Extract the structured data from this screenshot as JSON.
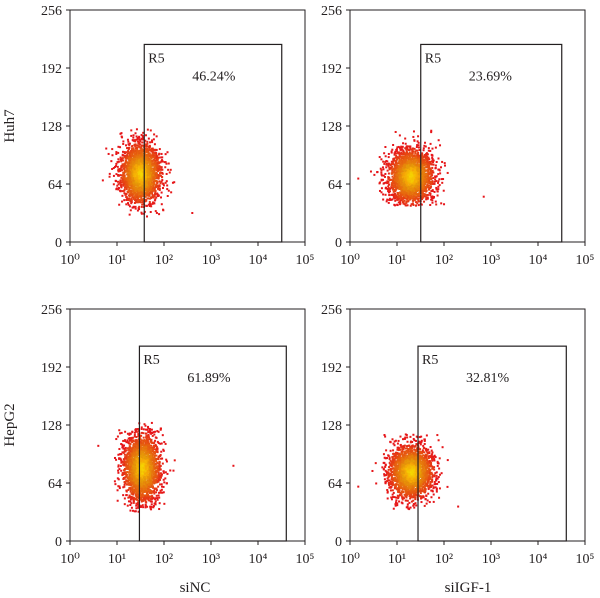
{
  "figure": {
    "row_labels": [
      "Huh7",
      "HepG2"
    ],
    "col_labels": [
      "siNC",
      "siIGF-1"
    ]
  },
  "chart_data": [
    {
      "type": "scatter",
      "row": 0,
      "col": 0,
      "cell_line": "Huh7",
      "condition": "siNC",
      "xscale": "log",
      "xlim": [
        1,
        100000
      ],
      "ylim": [
        0,
        256
      ],
      "xticks": [
        1,
        10,
        100,
        1000,
        10000,
        100000
      ],
      "yticks": [
        0,
        64,
        128,
        192,
        256
      ],
      "gate": {
        "name": "R5",
        "x": [
          38,
          32000
        ],
        "y": [
          0,
          218
        ],
        "percent": "46.24%"
      },
      "cluster": {
        "x_center": 32,
        "x_spread_decades": 0.22,
        "y_center": 75,
        "y_spread": 17,
        "y_min": 28,
        "y_max": 128,
        "points": 2200
      },
      "outliers": [
        [
          5,
          68
        ],
        [
          400,
          32
        ]
      ],
      "grid": false
    },
    {
      "type": "scatter",
      "row": 0,
      "col": 1,
      "cell_line": "Huh7",
      "condition": "siIGF-1",
      "xscale": "log",
      "xlim": [
        1,
        100000
      ],
      "ylim": [
        0,
        256
      ],
      "xticks": [
        1,
        10,
        100,
        1000,
        10000,
        100000
      ],
      "yticks": [
        0,
        64,
        128,
        192,
        256
      ],
      "gate": {
        "name": "R5",
        "x": [
          32,
          32000
        ],
        "y": [
          0,
          218
        ],
        "percent": "23.69%"
      },
      "cluster": {
        "x_center": 20,
        "x_spread_decades": 0.24,
        "y_center": 72,
        "y_spread": 15,
        "y_min": 40,
        "y_max": 128,
        "points": 2200
      },
      "outliers": [
        [
          1.5,
          70
        ],
        [
          700,
          50
        ]
      ],
      "grid": false
    },
    {
      "type": "scatter",
      "row": 1,
      "col": 0,
      "cell_line": "HepG2",
      "condition": "siNC",
      "xscale": "log",
      "xlim": [
        1,
        100000
      ],
      "ylim": [
        0,
        256
      ],
      "xticks": [
        1,
        10,
        100,
        1000,
        10000,
        100000
      ],
      "yticks": [
        0,
        64,
        128,
        192,
        256
      ],
      "gate": {
        "name": "R5",
        "x": [
          30,
          40000
        ],
        "y": [
          0,
          215
        ],
        "percent": "61.89%"
      },
      "cluster": {
        "x_center": 34,
        "x_spread_decades": 0.2,
        "y_center": 80,
        "y_spread": 19,
        "y_min": 32,
        "y_max": 132,
        "points": 2200
      },
      "outliers": [
        [
          3000,
          83
        ],
        [
          4,
          105
        ]
      ],
      "grid": false
    },
    {
      "type": "scatter",
      "row": 1,
      "col": 1,
      "cell_line": "HepG2",
      "condition": "siIGF-1",
      "xscale": "log",
      "xlim": [
        1,
        100000
      ],
      "ylim": [
        0,
        256
      ],
      "xticks": [
        1,
        10,
        100,
        1000,
        10000,
        100000
      ],
      "yticks": [
        0,
        64,
        128,
        192,
        256
      ],
      "gate": {
        "name": "R5",
        "x": [
          28,
          40000
        ],
        "y": [
          0,
          215
        ],
        "percent": "32.81%"
      },
      "cluster": {
        "x_center": 20,
        "x_spread_decades": 0.24,
        "y_center": 76,
        "y_spread": 15,
        "y_min": 35,
        "y_max": 118,
        "points": 2200
      },
      "outliers": [
        [
          1.5,
          60
        ],
        [
          200,
          38
        ]
      ],
      "grid": false
    }
  ]
}
